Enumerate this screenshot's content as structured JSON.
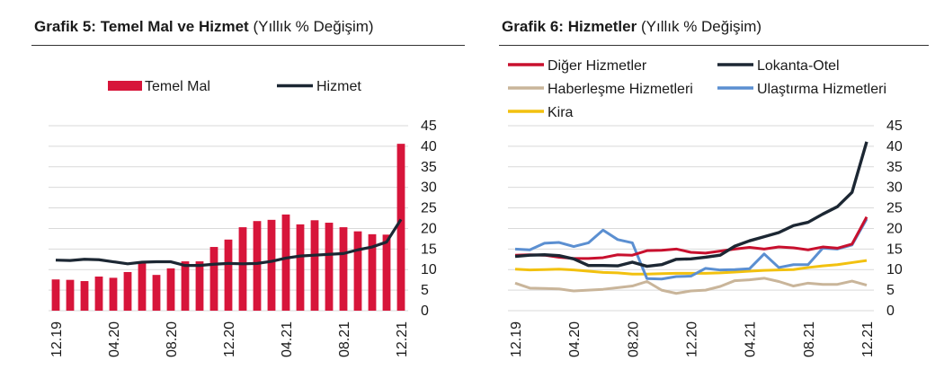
{
  "colors": {
    "temel_mal": "#d7153a",
    "hizmet": "#1c2733",
    "diger": "#c8102e",
    "lokanta": "#1c2733",
    "haberlesme": "#c9b59a",
    "ulastirma": "#5b8fd1",
    "kira": "#f2c10f",
    "grid": "#d9d9d9"
  },
  "chart_data": [
    {
      "type": "bar+line",
      "title_bold": "Grafik 5: Temel Mal ve Hizmet",
      "title_normal": "(Yıllık % Değişim)",
      "legend_placement": "top",
      "y_axis_side": "right",
      "ylim": [
        0,
        45
      ],
      "yticks": [
        "0",
        "5",
        "10",
        "15",
        "20",
        "25",
        "30",
        "35",
        "40",
        "45"
      ],
      "grid": true,
      "x_tick_labels": [
        {
          "index": 0,
          "label": "12.19"
        },
        {
          "index": 4,
          "label": "04.20"
        },
        {
          "index": 8,
          "label": "08.20"
        },
        {
          "index": 12,
          "label": "12.20"
        },
        {
          "index": 16,
          "label": "04.21"
        },
        {
          "index": 20,
          "label": "08.21"
        },
        {
          "index": 24,
          "label": "12.21"
        }
      ],
      "series": [
        {
          "name": "Temel Mal",
          "kind": "bar",
          "values": [
            7.6,
            7.5,
            7.2,
            8.3,
            8.0,
            9.4,
            11.8,
            8.7,
            10.3,
            12.0,
            12.0,
            15.5,
            17.3,
            20.3,
            21.8,
            22.1,
            23.4,
            21.0,
            22.0,
            21.4,
            20.3,
            19.3,
            18.6,
            18.5,
            40.6
          ]
        },
        {
          "name": "Hizmet",
          "kind": "line",
          "values": [
            12.3,
            12.2,
            12.5,
            12.4,
            11.9,
            11.4,
            11.8,
            11.9,
            11.9,
            11.0,
            11.0,
            11.3,
            11.5,
            11.4,
            11.5,
            12.0,
            12.8,
            13.3,
            13.5,
            13.7,
            13.9,
            14.8,
            15.5,
            16.7,
            22.2
          ]
        }
      ]
    },
    {
      "type": "line",
      "title_bold": "Grafik 6: Hizmetler",
      "title_normal": "(Yıllık % Değişim)",
      "legend_placement": "top",
      "y_axis_side": "right",
      "ylim": [
        0,
        45
      ],
      "yticks": [
        "0",
        "5",
        "10",
        "15",
        "20",
        "25",
        "30",
        "35",
        "40",
        "45"
      ],
      "grid": true,
      "x_tick_labels": [
        {
          "index": 0,
          "label": "12.19"
        },
        {
          "index": 4,
          "label": "04.20"
        },
        {
          "index": 8,
          "label": "08.20"
        },
        {
          "index": 12,
          "label": "12.20"
        },
        {
          "index": 16,
          "label": "04.21"
        },
        {
          "index": 20,
          "label": "08.21"
        },
        {
          "index": 24,
          "label": "12.21"
        }
      ],
      "series": [
        {
          "name": "Diğer Hizmetler",
          "color_key": "diger",
          "values": [
            13.5,
            13.6,
            13.5,
            13.0,
            12.7,
            12.7,
            12.9,
            13.6,
            13.5,
            14.6,
            14.7,
            15.0,
            14.2,
            14.0,
            14.5,
            15.0,
            15.4,
            15.0,
            15.5,
            15.3,
            14.8,
            15.5,
            15.2,
            16.2,
            22.8
          ]
        },
        {
          "name": "Lokanta-Otel",
          "color_key": "lokanta",
          "values": [
            13.2,
            13.5,
            13.6,
            13.4,
            12.6,
            11.0,
            11.0,
            10.9,
            11.8,
            10.8,
            11.2,
            12.5,
            12.6,
            13.0,
            13.5,
            15.7,
            17.0,
            18.0,
            19.0,
            20.7,
            21.5,
            23.5,
            25.3,
            28.8,
            41.1
          ]
        },
        {
          "name": "Haberleşme Hizmetleri",
          "color_key": "haberlesme",
          "values": [
            6.7,
            5.5,
            5.4,
            5.3,
            4.8,
            5.0,
            5.2,
            5.6,
            6.0,
            7.1,
            5.0,
            4.2,
            4.8,
            5.0,
            5.9,
            7.3,
            7.5,
            7.9,
            7.1,
            6.0,
            6.7,
            6.4,
            6.4,
            7.2,
            6.2
          ]
        },
        {
          "name": "Ulaştırma Hizmetleri",
          "color_key": "ulastirma",
          "values": [
            15.0,
            14.8,
            16.4,
            16.6,
            15.6,
            16.5,
            19.6,
            17.3,
            16.5,
            7.8,
            7.7,
            8.3,
            8.4,
            10.3,
            9.9,
            10.0,
            10.2,
            13.8,
            10.5,
            11.2,
            11.2,
            15.2,
            15.0,
            16.0,
            22.3
          ]
        },
        {
          "name": "Kira",
          "color_key": "kira",
          "values": [
            10.1,
            9.9,
            10.0,
            10.1,
            9.9,
            9.6,
            9.3,
            9.2,
            8.9,
            8.9,
            9.0,
            9.1,
            9.1,
            9.1,
            9.2,
            9.4,
            9.6,
            9.8,
            9.9,
            10.0,
            10.5,
            10.9,
            11.2,
            11.7,
            12.2
          ]
        }
      ]
    }
  ]
}
